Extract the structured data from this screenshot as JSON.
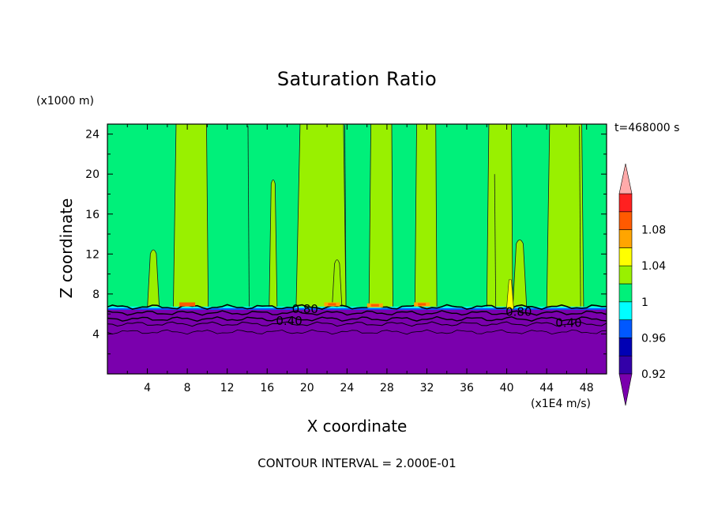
{
  "chart_data": {
    "type": "heatmap",
    "title": "Saturation Ratio",
    "xlabel": "X coordinate",
    "ylabel": "Z coordinate",
    "x_unit": "(x1E4 m/s)",
    "y_unit": "(x1000 m)",
    "time_label": "t=468000 s",
    "footer": "CONTOUR INTERVAL = 2.000E-01",
    "xlim": [
      0,
      50
    ],
    "ylim": [
      0,
      25
    ],
    "x_ticks": [
      4,
      8,
      12,
      16,
      20,
      24,
      28,
      32,
      36,
      40,
      44,
      48
    ],
    "y_ticks": [
      4,
      8,
      12,
      16,
      20,
      24
    ],
    "colorbar": {
      "levels": [
        {
          "value": 0.9,
          "color": "#7a00ad"
        },
        {
          "value": 0.92,
          "color": "#3300a8"
        },
        {
          "value": 0.94,
          "color": "#0000b4"
        },
        {
          "value": 0.96,
          "color": "#0058ff"
        },
        {
          "value": 0.98,
          "color": "#00ffff"
        },
        {
          "value": 1.0,
          "color": "#00f07a"
        },
        {
          "value": 1.02,
          "color": "#99f000"
        },
        {
          "value": 1.04,
          "color": "#ffff00"
        },
        {
          "value": 1.06,
          "color": "#ffa500"
        },
        {
          "value": 1.08,
          "color": "#ff5a00"
        },
        {
          "value": 1.1,
          "color": "#ff2020"
        },
        {
          "value": 1.12,
          "color": "#ffaaaa"
        }
      ],
      "tick_labels": [
        "0.92",
        "0.96",
        "1",
        "1.04",
        "1.08"
      ],
      "over_color": "#ffaaaa",
      "under_color": "#7a00ad"
    },
    "contour_labels": [
      {
        "text": "0.80",
        "x": 19.8,
        "y": 6.5
      },
      {
        "text": "0.40",
        "x": 18.2,
        "y": 5.3
      },
      {
        "text": "0.80",
        "x": 41.2,
        "y": 6.2
      },
      {
        "text": "0.40",
        "x": 46.2,
        "y": 5.1
      }
    ],
    "regions": {
      "dry_layer_top": 6.5,
      "supersaturated_columns": [
        {
          "x0": 6.6,
          "x1": 10.1,
          "top": 25
        },
        {
          "x0": 18.9,
          "x1": 23.9,
          "top": 25
        },
        {
          "x0": 26.2,
          "x1": 28.6,
          "top": 25
        },
        {
          "x0": 30.8,
          "x1": 33.0,
          "top": 25
        },
        {
          "x0": 38.0,
          "x1": 40.6,
          "top": 25
        },
        {
          "x0": 40.6,
          "x1": 42.0,
          "top": 13.5
        },
        {
          "x0": 44.0,
          "x1": 47.7,
          "top": 25
        },
        {
          "x0": 4.0,
          "x1": 5.2,
          "top": 12.5
        },
        {
          "x0": 16.2,
          "x1": 17.0,
          "top": 19.5
        },
        {
          "x0": 22.5,
          "x1": 23.5,
          "top": 11.5
        }
      ],
      "hot_spots": [
        {
          "x": 8.0,
          "y": 7.0,
          "level": 1.08
        },
        {
          "x": 22.5,
          "y": 7.0,
          "level": 1.06
        },
        {
          "x": 26.8,
          "y": 6.9,
          "level": 1.06
        },
        {
          "x": 31.5,
          "y": 7.0,
          "level": 1.06
        },
        {
          "x": 40.3,
          "y": 8.0,
          "level": 1.04
        }
      ]
    }
  }
}
